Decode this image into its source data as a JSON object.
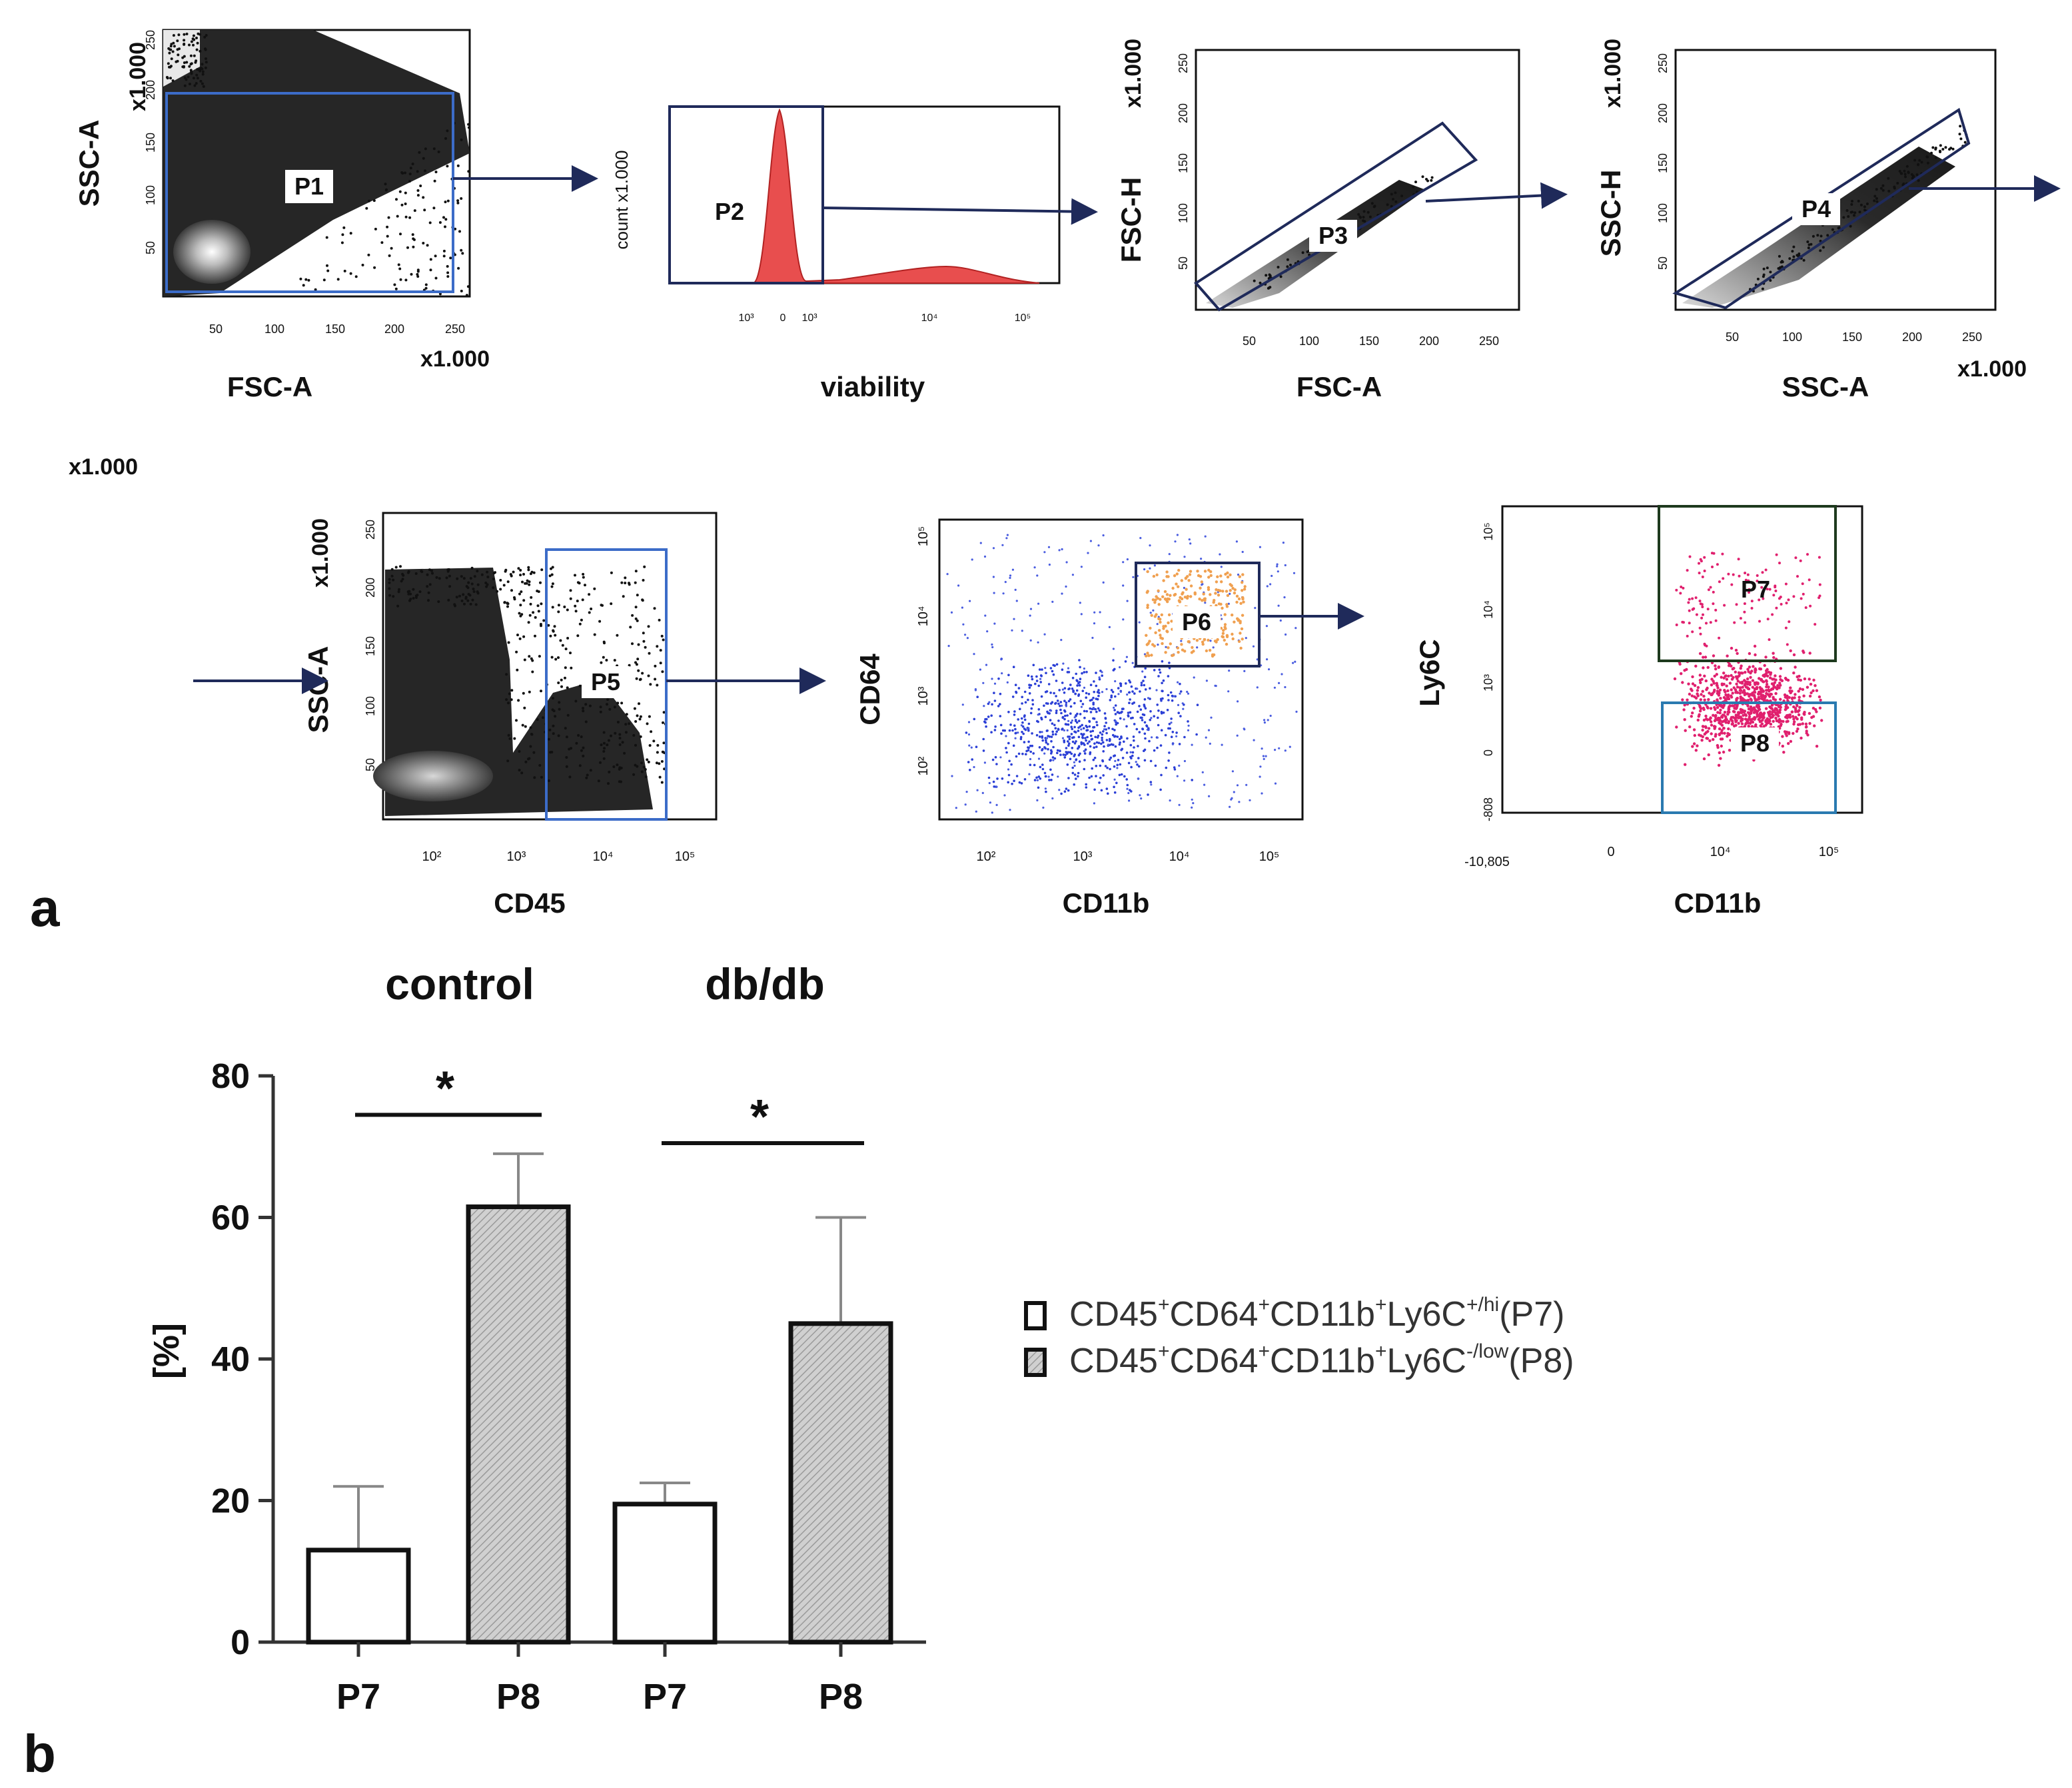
{
  "panel_labels": {
    "a": "a",
    "b": "b"
  },
  "panel_a": {
    "stray_label": "x1.000",
    "plots": [
      {
        "gate": "P1",
        "xlabel": "FSC-A",
        "ylabel": "SSC-A",
        "x_mult": "x1.000",
        "y_mult": "x1.000",
        "xticks": [
          "50",
          "100",
          "150",
          "200",
          "250"
        ],
        "yticks": [
          "50",
          "100",
          "150",
          "200",
          "250"
        ]
      },
      {
        "gate": "P2",
        "xlabel": "viability",
        "ylabel": "count x1.000",
        "xticks": [
          "10³",
          "0",
          "10³",
          "10⁴",
          "10⁵"
        ]
      },
      {
        "gate": "P3",
        "xlabel": "FSC-A",
        "ylabel": "FSC-H",
        "y_mult": "x1.000",
        "xticks": [
          "50",
          "100",
          "150",
          "200",
          "250"
        ],
        "yticks": [
          "50",
          "100",
          "150",
          "200",
          "250"
        ]
      },
      {
        "gate": "P4",
        "xlabel": "SSC-A",
        "ylabel": "SSC-H",
        "x_mult": "x1.000",
        "y_mult": "x1.000",
        "xticks": [
          "50",
          "100",
          "150",
          "200",
          "250"
        ],
        "yticks": [
          "50",
          "100",
          "150",
          "200",
          "250"
        ]
      },
      {
        "gate": "P5",
        "xlabel": "CD45",
        "ylabel": "SSC-A",
        "y_mult": "x1.000",
        "xticks": [
          "10²",
          "10³",
          "10⁴",
          "10⁵"
        ],
        "yticks": [
          "50",
          "100",
          "150",
          "200",
          "250"
        ]
      },
      {
        "gate": "P6",
        "xlabel": "CD11b",
        "ylabel": "CD64",
        "xticks": [
          "10²",
          "10³",
          "10⁴",
          "10⁵"
        ],
        "yticks": [
          "10²",
          "10³",
          "10⁴",
          "10⁵"
        ]
      },
      {
        "gates": [
          "P7",
          "P8"
        ],
        "xlabel": "CD11b",
        "ylabel": "Ly6C",
        "xticks": [
          "-10,805",
          "0",
          "10⁴",
          "10⁵"
        ],
        "yticks": [
          "-808",
          "0",
          "10³",
          "10⁴",
          "10⁵"
        ]
      }
    ]
  },
  "chart_data": {
    "type": "bar",
    "groups": [
      "control",
      "db/db"
    ],
    "categories": [
      "P7",
      "P8",
      "P7",
      "P8"
    ],
    "ylabel": "[%]",
    "ylim": [
      0,
      80
    ],
    "yticks": [
      0,
      20,
      40,
      60,
      80
    ],
    "series": [
      {
        "name": "CD45⁺CD64⁺CD11b⁺Ly6C⁺/hi(P7)",
        "fill": "#ffffff",
        "values": [
          13,
          null,
          19.5,
          null
        ],
        "errors": [
          9,
          null,
          3,
          null
        ]
      },
      {
        "name": "CD45⁺CD64⁺CD11b⁺Ly6C⁻/low(P8)",
        "fill": "#c8c8c8",
        "values": [
          null,
          61.5,
          null,
          45
        ],
        "errors": [
          null,
          7.5,
          null,
          15
        ]
      }
    ],
    "significance": [
      {
        "between": [
          "P7",
          "P8"
        ],
        "group": "control",
        "mark": "*"
      },
      {
        "between": [
          "P7",
          "P8"
        ],
        "group": "db/db",
        "mark": "*"
      }
    ],
    "legend_position": "right",
    "legend": [
      {
        "base": "CD45",
        "s1": "+",
        "m1": "CD64",
        "s2": "+",
        "m2": "CD11b",
        "s3": "+",
        "m3": "Ly6C",
        "s4": "+/hi",
        "tail": "(P7)"
      },
      {
        "base": "CD45",
        "s1": "+",
        "m1": "CD64",
        "s2": "+",
        "m2": "CD11b",
        "s3": "+",
        "m3": "Ly6C",
        "s4": "-/low",
        "tail": "(P8)"
      }
    ]
  }
}
